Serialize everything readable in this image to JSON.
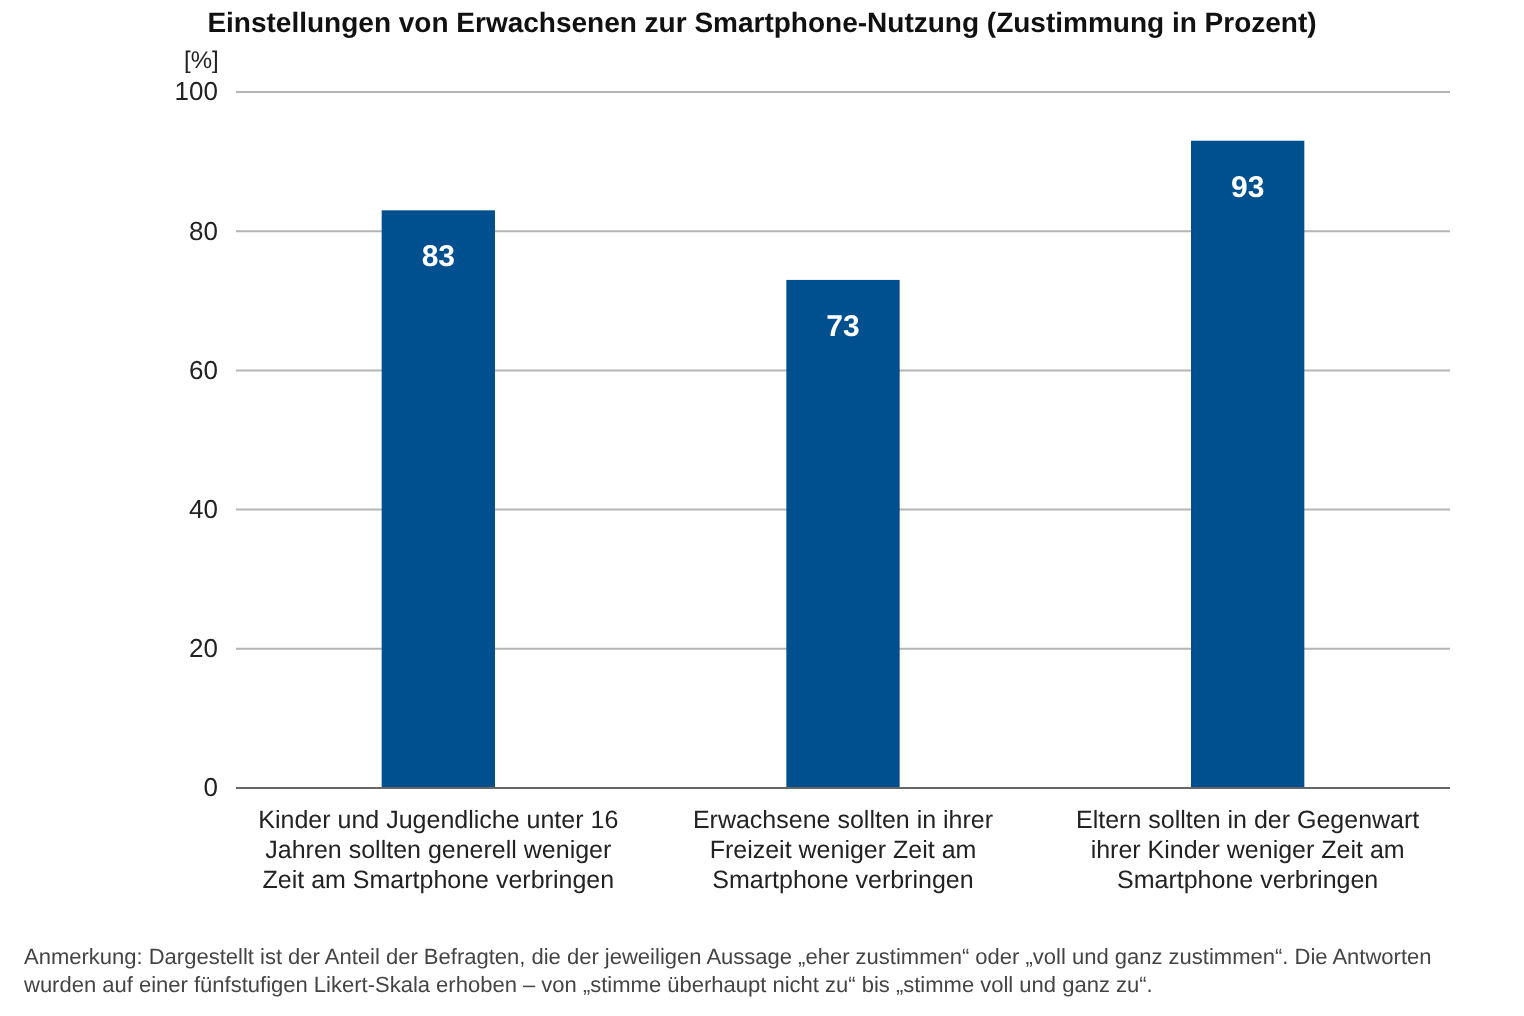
{
  "chart_data": {
    "type": "bar",
    "title": "Einstellungen von Erwachsenen zur Smartphone-Nutzung (Zustimmung in Prozent)",
    "ylabel": "[%]",
    "categories": [
      "Kinder und Jugendliche unter 16 Jahren sollten generell weniger Zeit am Smartphone verbringen",
      "Erwachsene sollten in ihrer Freizeit weniger Zeit am Smartphone verbringen",
      "Eltern sollten in der Gegenwart ihrer Kinder weniger Zeit am Smartphone verbringen"
    ],
    "values": [
      83,
      73,
      93
    ],
    "color": "#004f8f",
    "ylim": [
      0,
      100
    ],
    "yticks": [
      0,
      20,
      40,
      60,
      80,
      100
    ],
    "grid": "y",
    "data_labels": true,
    "annotations": [
      "Anmerkung: Dargestellt ist der Anteil der Befragten, die der jeweiligen Aussage „eher zustimmen“ oder „voll und ganz zustimmen“. Die Antworten wurden auf einer fünfstufigen Likert-Skala erhoben – von „stimme überhaupt nicht zu“ bis „stimme voll und ganz zu“."
    ]
  }
}
